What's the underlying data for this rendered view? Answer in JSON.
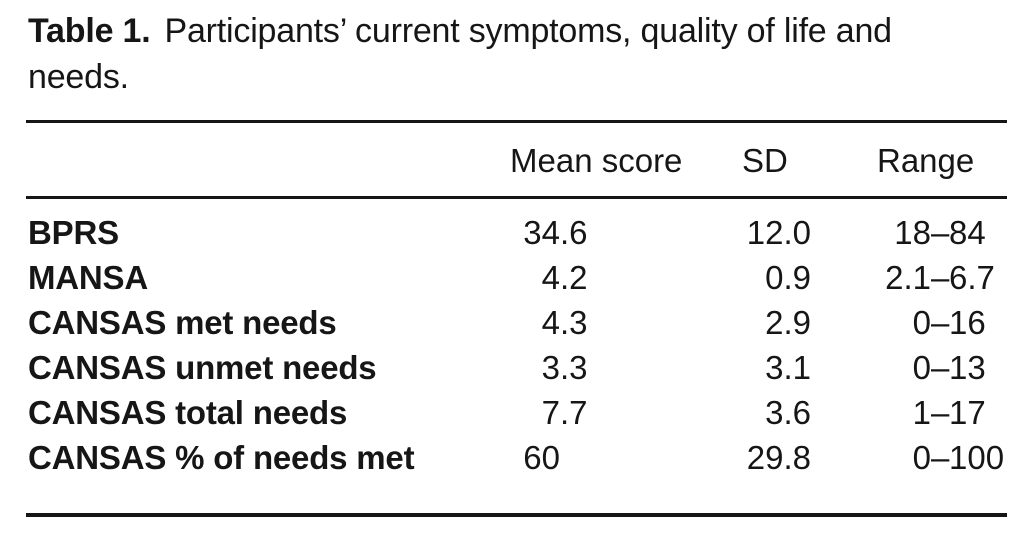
{
  "caption": {
    "label": "Table 1.",
    "line1": "Participants’ current symptoms, quality of life and",
    "line2": "needs."
  },
  "table": {
    "header": {
      "mean": "Mean score",
      "sd": "SD",
      "range": "Range"
    },
    "rows": [
      {
        "label": "BPRS",
        "mean": "34.6",
        "sd": "12.0",
        "range": "18–84"
      },
      {
        "label": "MANSA",
        "mean": "4.2",
        "sd": "0.9",
        "range": "2.1–6.7"
      },
      {
        "label": "CANSAS met needs",
        "mean": "4.3",
        "sd": "2.9",
        "range": "0–16"
      },
      {
        "label": "CANSAS unmet needs",
        "mean": "3.3",
        "sd": "3.1",
        "range": "0–13"
      },
      {
        "label": "CANSAS total needs",
        "mean": "7.7",
        "sd": "3.6",
        "range": "1–17"
      },
      {
        "label": "CANSAS % of needs met",
        "mean": "60",
        "sd": "29.8",
        "range": "0–100"
      }
    ]
  },
  "colors": {
    "text": "#161616",
    "background": "#ffffff",
    "rule": "#161616"
  }
}
